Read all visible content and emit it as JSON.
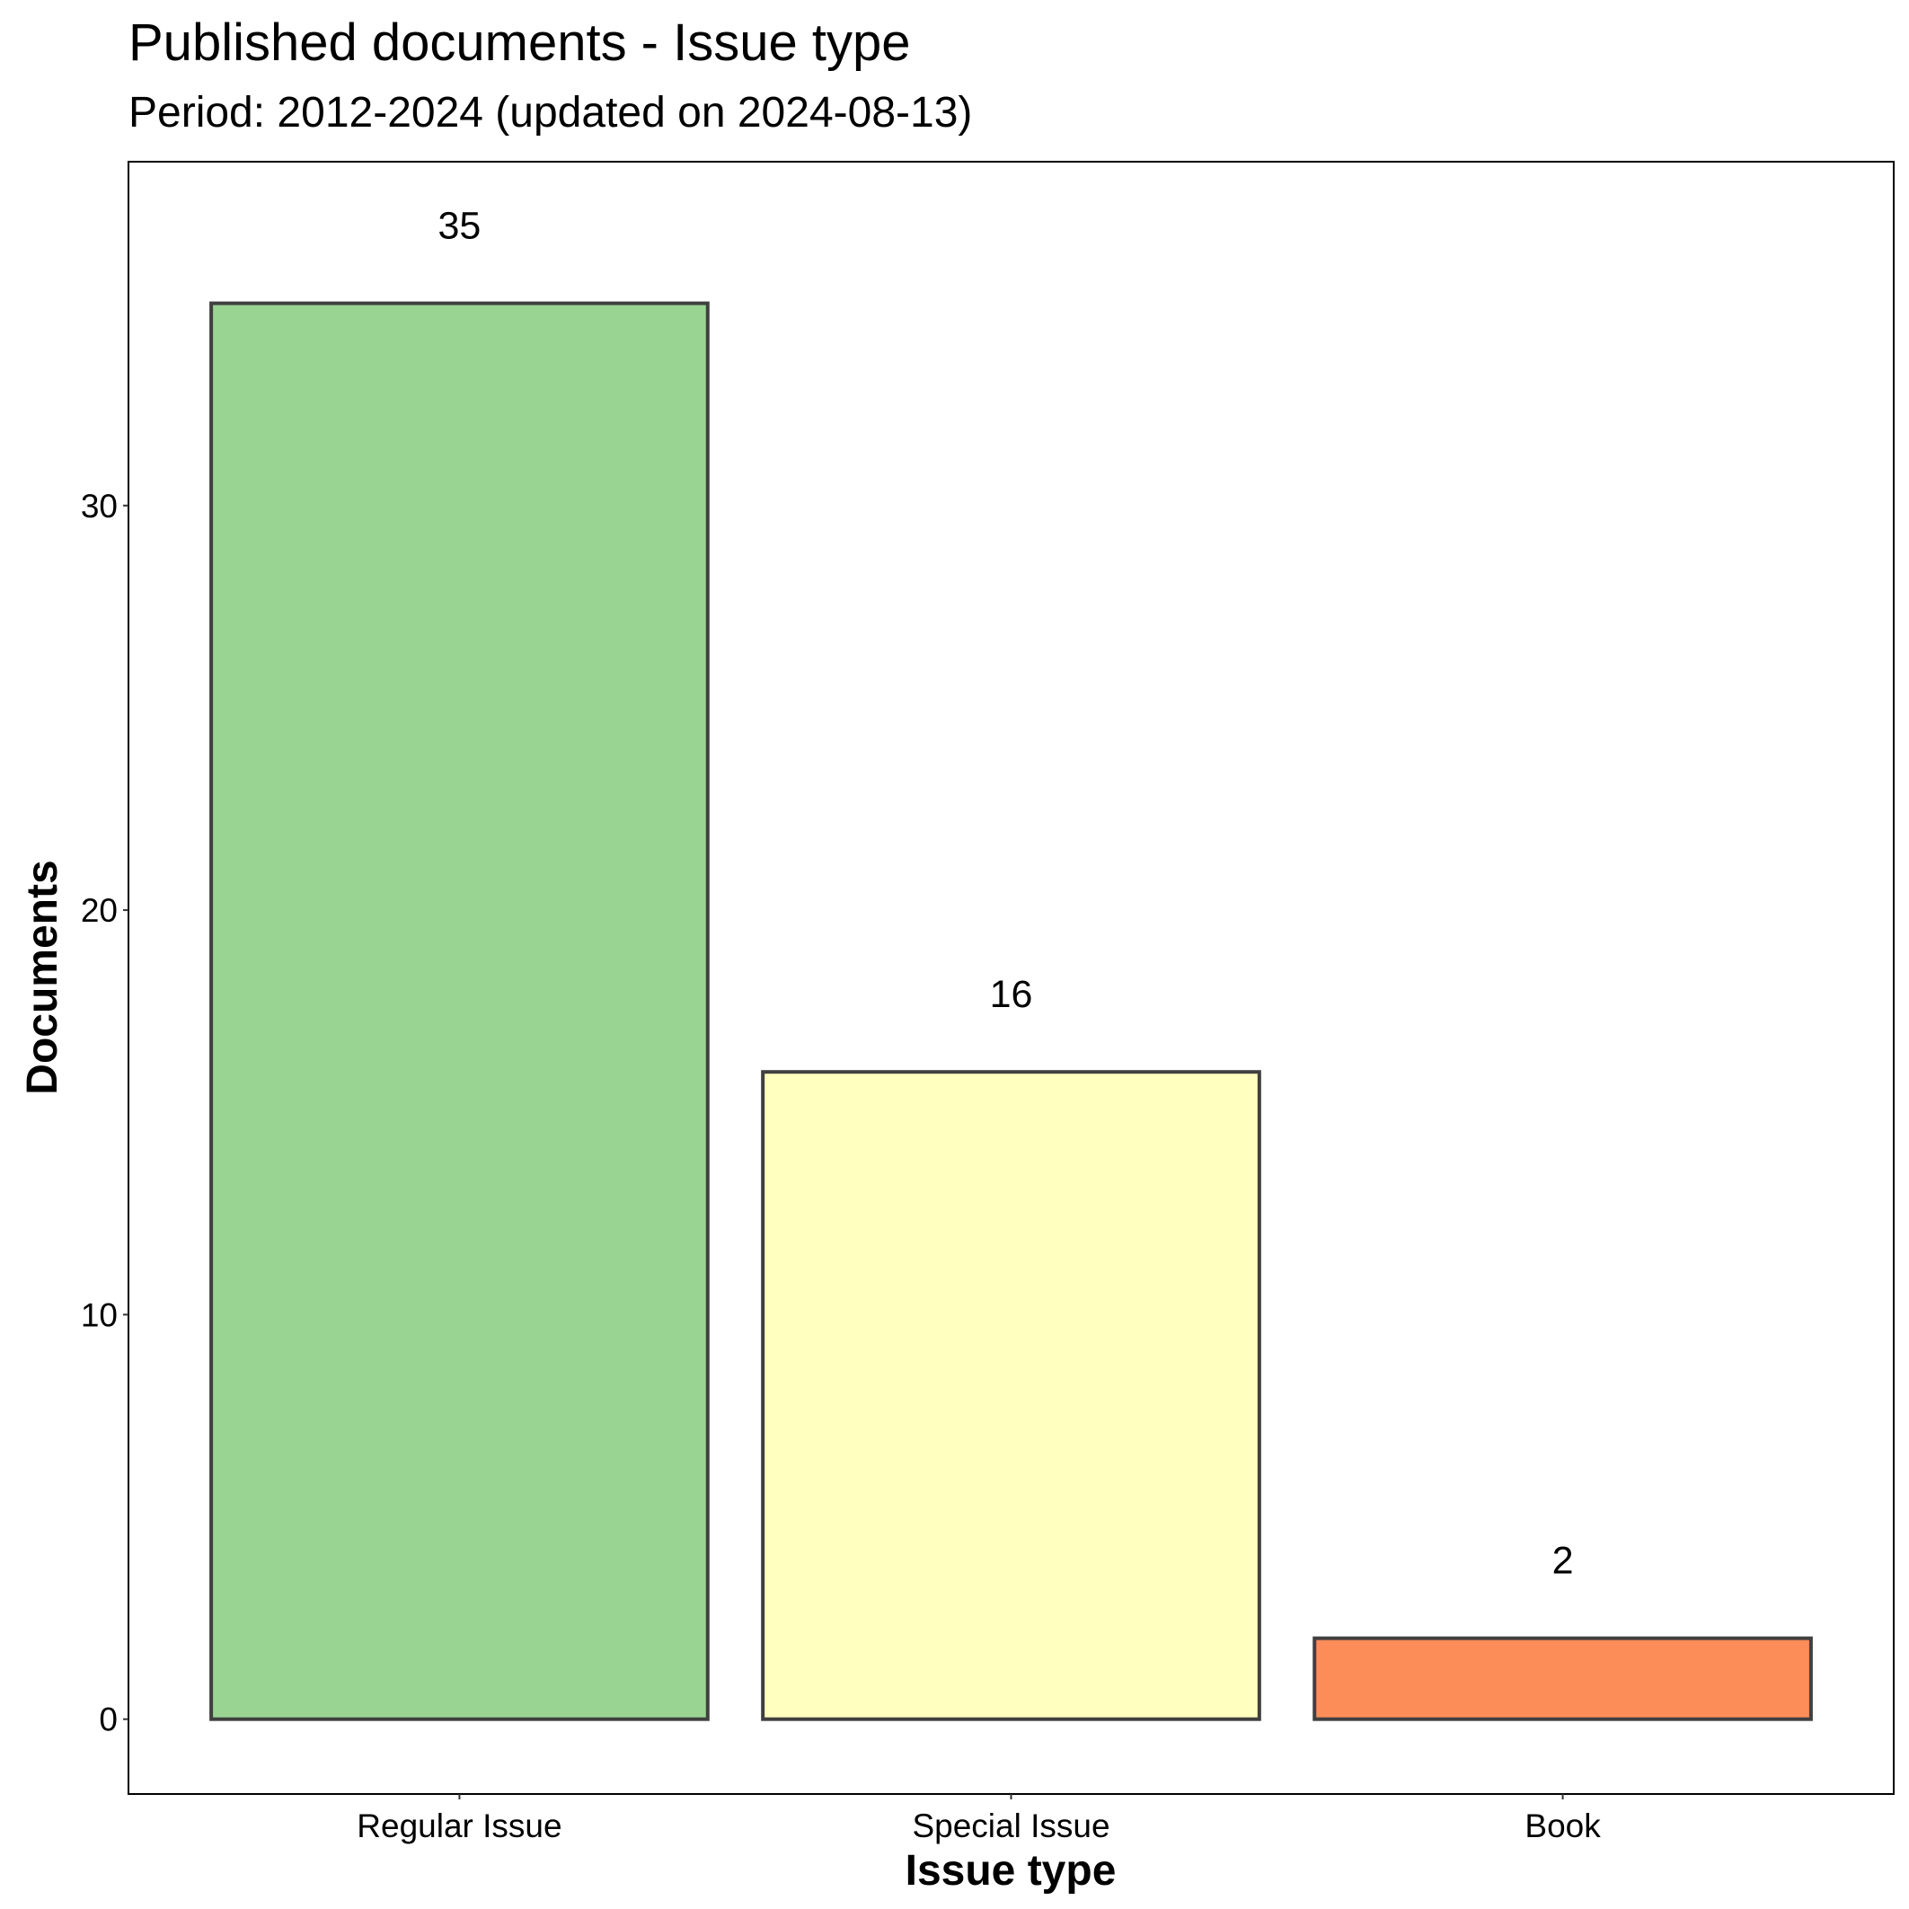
{
  "title": "Published documents - Issue type",
  "subtitle": "Period: 2012-2024 (updated on 2024-08-13)",
  "chart_data": {
    "type": "bar",
    "categories": [
      "Regular Issue",
      "Special Issue",
      "Book"
    ],
    "values": [
      35,
      16,
      2
    ],
    "colors": [
      "#9AD493",
      "#FFFFBF",
      "#FC8D59"
    ],
    "bar_outline_color": "#404040",
    "xlabel": "Issue type",
    "ylabel": "Documents",
    "ylim": [
      -1.85,
      38.5
    ],
    "yticks": [
      0,
      10,
      20,
      30
    ],
    "grid": false,
    "legend": "none"
  }
}
